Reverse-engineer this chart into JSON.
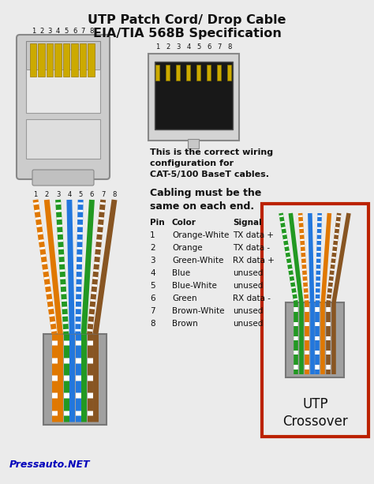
{
  "title_line1": "UTP Patch Cord/ Drop Cable",
  "title_line2": "EIA/TIA 568B Specification",
  "bg_color": "#ebebeb",
  "connector_body_color": "#cccccc",
  "cable_jacket_color": "#a0a0a0",
  "rj45_pin_color": "#ccaa00",
  "crossover_border_color": "#bb2200",
  "pressauto_color": "#0000bb",
  "wire_colors": {
    "orange_white": [
      "#e07800",
      "#ffffff"
    ],
    "orange": [
      "#e07800",
      "#e07800"
    ],
    "green_white": [
      "#229922",
      "#ffffff"
    ],
    "blue": [
      "#2277dd",
      "#2277dd"
    ],
    "blue_white": [
      "#2277dd",
      "#ffffff"
    ],
    "green": [
      "#229922",
      "#229922"
    ],
    "brown_white": [
      "#885522",
      "#ffffff"
    ],
    "brown": [
      "#885522",
      "#885522"
    ]
  },
  "pin_data": [
    {
      "pin": "1",
      "color": "Orange-White",
      "signal": "TX data +"
    },
    {
      "pin": "2",
      "color": "Orange",
      "signal": "TX data -"
    },
    {
      "pin": "3",
      "color": "Green-White",
      "signal": "RX data +"
    },
    {
      "pin": "4",
      "color": "Blue",
      "signal": "unused"
    },
    {
      "pin": "5",
      "color": "Blue-White",
      "signal": "unused"
    },
    {
      "pin": "6",
      "color": "Green",
      "signal": "RX data -"
    },
    {
      "pin": "7",
      "color": "Brown-White",
      "signal": "unused"
    },
    {
      "pin": "8",
      "color": "Brown",
      "signal": "unused"
    }
  ],
  "correct_wiring_text": [
    "This is the correct wiring",
    "configuration for",
    "CAT-5/100 BaseT cables."
  ],
  "cabling_text": [
    "Cabling must be the",
    "same on each end."
  ]
}
